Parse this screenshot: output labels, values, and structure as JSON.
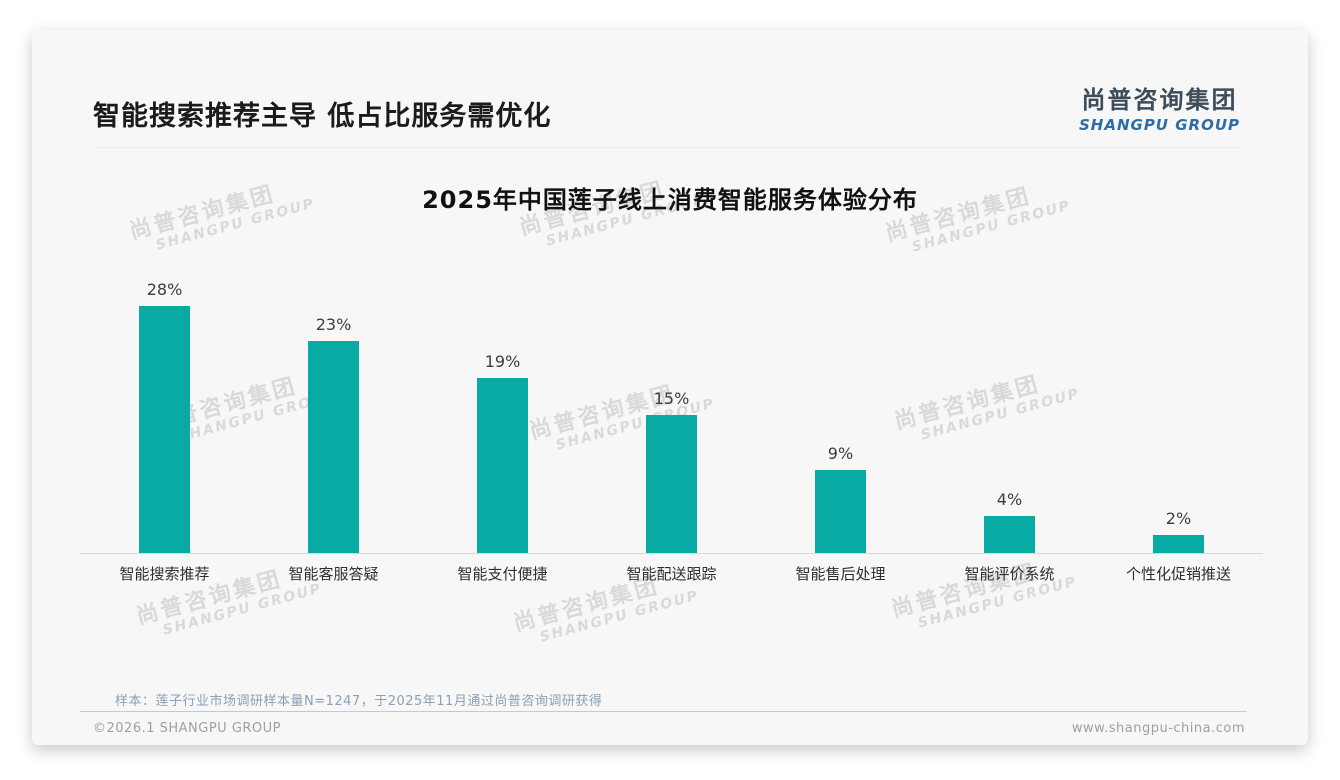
{
  "header": {
    "title": "智能搜索推荐主导 低占比服务需优化",
    "logo_cn": "尚普咨询集团",
    "logo_en": "SHANGPU GROUP"
  },
  "watermark": {
    "line1": "尚普咨询集团",
    "line2": "SHANGPU GROUP"
  },
  "chart_data": {
    "type": "bar",
    "title": "2025年中国莲子线上消费智能服务体验分布",
    "categories": [
      "智能搜索推荐",
      "智能客服答疑",
      "智能支付便捷",
      "智能配送跟踪",
      "智能售后处理",
      "智能评价系统",
      "个性化促销推送"
    ],
    "values": [
      28,
      23,
      19,
      15,
      9,
      4,
      2
    ],
    "data_labels": [
      "28%",
      "23%",
      "19%",
      "15%",
      "9%",
      "4%",
      "2%"
    ],
    "unit": "percent",
    "bar_color": "#07aba4",
    "ylim": [
      0,
      30
    ],
    "xlabel": "",
    "ylabel": "",
    "grid": false,
    "legend_position": "none"
  },
  "footer": {
    "note": "样本：莲子行业市场调研样本量N=1247，于2025年11月通过尚普咨询调研获得",
    "copyright": "©2026.1 SHANGPU GROUP",
    "website": "www.shangpu-china.com"
  }
}
